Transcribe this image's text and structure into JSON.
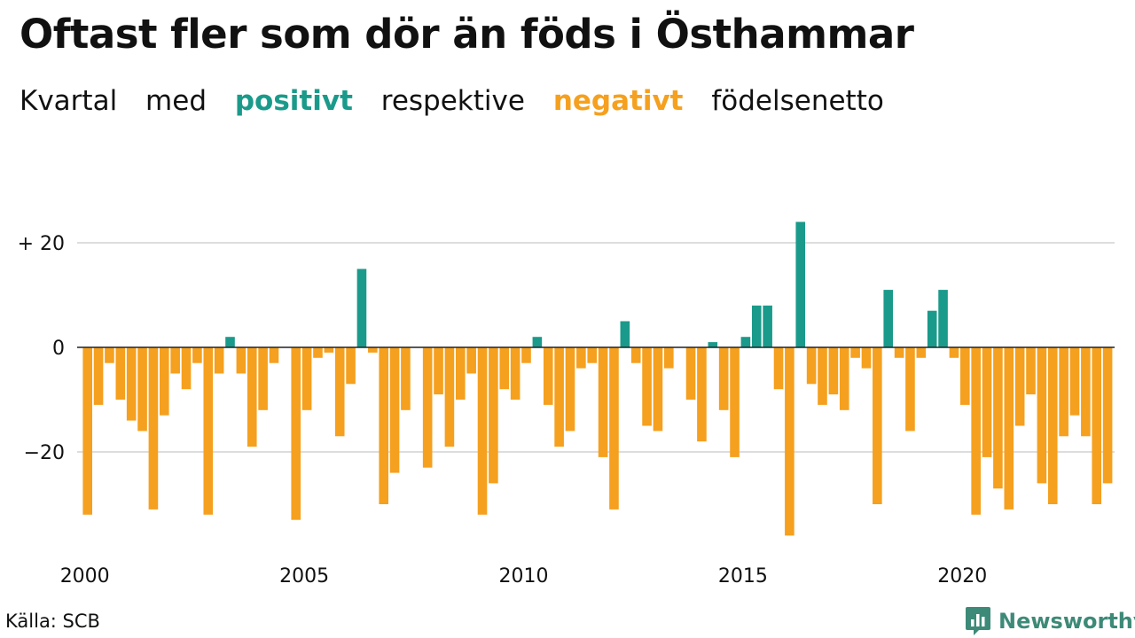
{
  "title": "Oftast fler som dör än föds i Östhammar",
  "subtitle": {
    "part1": "Kvartal",
    "part2": "med",
    "positive_word": "positivt",
    "part3": "respektive",
    "negative_word": "negativt",
    "part4": "födelsenetto"
  },
  "colors": {
    "positive": "#1a9a8a",
    "negative": "#f5a01e",
    "grid": "#dddddd",
    "zero_line": "#222222",
    "brand": "#3d8a78"
  },
  "source": "Källa: SCB",
  "brand": {
    "name": "Newsworthy",
    "icon": "bar-chart-speech-bubble-icon"
  },
  "chart_data": {
    "type": "bar",
    "title": "Oftast fler som dör än föds i Östhammar",
    "subtitle": "Kvartal med positivt respektive negativt födelsenetto",
    "xlabel": "",
    "ylabel": "",
    "x_start_year": 2000,
    "periods_per_year": 4,
    "x_tick_labels": [
      "2000",
      "2005",
      "2010",
      "2015",
      "2020"
    ],
    "y_ticks": [
      {
        "value": 20,
        "label": "+ 20"
      },
      {
        "value": 0,
        "label": "0"
      },
      {
        "value": -20,
        "label": "−20"
      }
    ],
    "ylim": [
      -37,
      24
    ],
    "grid": true,
    "values": [
      -32,
      -11,
      -3,
      -10,
      -14,
      -16,
      -31,
      -13,
      -5,
      -8,
      -3,
      -32,
      -5,
      2,
      -5,
      -19,
      -12,
      -3,
      0,
      -33,
      -12,
      -2,
      -1,
      -17,
      -7,
      15,
      -1,
      -30,
      -24,
      -12,
      0,
      -23,
      -9,
      -19,
      -10,
      -5,
      -32,
      -26,
      -8,
      -10,
      -3,
      2,
      -11,
      -19,
      -16,
      -4,
      -3,
      -21,
      -31,
      5,
      -3,
      -15,
      -16,
      -4,
      0,
      -10,
      -18,
      1,
      -12,
      -21,
      2,
      8,
      8,
      -8,
      -36,
      24,
      -7,
      -11,
      -9,
      -12,
      -2,
      -4,
      -30,
      11,
      -2,
      -16,
      -2,
      7,
      11,
      -2,
      -11,
      -32,
      -21,
      -27,
      -31,
      -15,
      -9,
      -26,
      -30,
      -17,
      -13,
      -17,
      -30,
      -26
    ]
  }
}
